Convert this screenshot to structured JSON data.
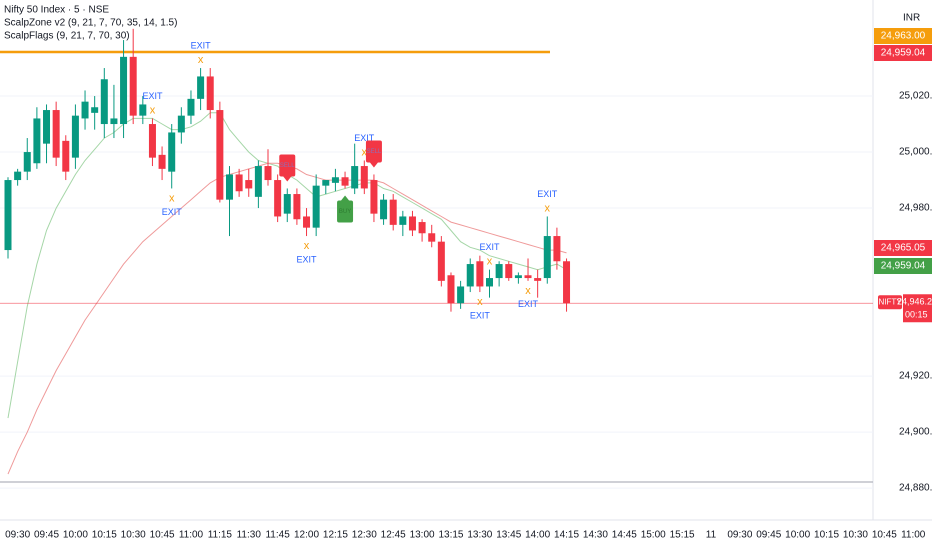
{
  "chart_data": {
    "type": "candlestick",
    "title": "Nifty 50 Index · 5 · NSE",
    "indicators": [
      "ScalpZone v2 (9, 21, 7, 70, 35, 14, 1.5)",
      "ScalpFlags (9, 21, 7, 70, 30)"
    ],
    "currency": "INR",
    "categories": [
      null,
      "09:30",
      null,
      null,
      "09:45",
      null,
      null,
      "10:00",
      null,
      null,
      "10:15",
      null,
      null,
      "10:30",
      null,
      null,
      "10:45",
      null,
      null,
      "11:00",
      null,
      null,
      "11:15",
      null,
      null,
      "11:30",
      null,
      null,
      "11:45",
      null,
      null,
      "12:00",
      null,
      null,
      "12:15",
      null,
      null,
      "12:30",
      null,
      null,
      "12:45",
      null,
      null,
      "13:00",
      null,
      null,
      "13:15",
      null,
      null,
      "13:30",
      null,
      null,
      "13:45",
      null,
      null,
      "14:00",
      null,
      null,
      "14:15"
    ],
    "future_time_labels": [
      "14:30",
      "14:45",
      "15:00",
      "15:15",
      "11",
      "09:30",
      "09:45",
      "10:00",
      "10:15",
      "10:30",
      "10:45",
      "11:00"
    ],
    "open": [
      24965,
      24990,
      24993,
      24996,
      25003,
      25015,
      25004,
      24998,
      25012,
      25014,
      25010,
      25010,
      25010,
      25034,
      25013,
      25010,
      24999,
      24993,
      25007,
      25013,
      25019,
      25027,
      25015,
      24983,
      24992,
      24990,
      24984,
      24995,
      24990,
      24978,
      24985,
      24977,
      24973,
      24988,
      24989,
      24991,
      24987,
      24995,
      24990,
      24976,
      24983,
      24974,
      24977,
      24975,
      24971,
      24968,
      24956,
      24946,
      24952,
      24961,
      24952,
      24955,
      24960,
      24955,
      24956,
      24955,
      24955,
      24970,
      24961
    ],
    "high": [
      24991,
      24994,
      25005,
      25016,
      25017,
      25018,
      25006,
      25017,
      25022,
      25020,
      25030,
      25024,
      25040,
      25044,
      25020,
      25012,
      25002,
      25010,
      25016,
      25022,
      25030,
      25030,
      25018,
      24995,
      24994,
      24994,
      24997,
      25001,
      24992,
      24987,
      24987,
      24980,
      24992,
      24990,
      24994,
      24993,
      25003,
      24997,
      24992,
      24985,
      24985,
      24979,
      24979,
      24976,
      24974,
      24970,
      24957,
      24954,
      24962,
      24963,
      24958,
      24961,
      24961,
      24957,
      24962,
      24958,
      24977,
      24973,
      24962
    ],
    "low": [
      24962,
      24988,
      24990,
      24994,
      24996,
      24995,
      24990,
      24994,
      25008,
      25008,
      25005,
      25005,
      25005,
      25010,
      25010,
      24995,
      24990,
      24987,
      25003,
      25010,
      25015,
      25012,
      24982,
      24970,
      24984,
      24984,
      24980,
      24988,
      24975,
      24975,
      24974,
      24970,
      24970,
      24985,
      24986,
      24987,
      24985,
      24985,
      24975,
      24974,
      24972,
      24970,
      24970,
      24968,
      24966,
      24952,
      24943,
      24944,
      24950,
      24950,
      24948,
      24952,
      24954,
      24953,
      24954,
      24948,
      24953,
      24958,
      24943
    ],
    "close": [
      24990,
      24993,
      25000,
      25012,
      25015,
      24998,
      24993,
      25013,
      25018,
      25016,
      25026,
      25012,
      25034,
      25013,
      25017,
      24998,
      24994,
      25007,
      25013,
      25019,
      25027,
      25015,
      24983,
      24992,
      24986,
      24987,
      24995,
      24990,
      24977,
      24985,
      24976,
      24973,
      24988,
      24990,
      24991,
      24988,
      24995,
      24987,
      24978,
      24983,
      24974,
      24977,
      24972,
      24971,
      24968,
      24954,
      24946,
      24952,
      24960,
      24952,
      24955,
      24960,
      24955,
      24956,
      24955,
      24954,
      24970,
      24961,
      24946
    ],
    "up_color": "#089981",
    "down_color": "#f23645",
    "lines": [
      {
        "color": "#a5d6a7",
        "values": [
          24905,
          24925,
          24945,
          24960,
          24972,
          24980,
          24986,
          24992,
          24997,
          25001,
          25005,
          25007,
          25010,
          25012,
          25012,
          25012,
          25010,
          25008,
          25008,
          25009,
          25011,
          25014,
          25014,
          25008,
          25004,
          25000,
          24997,
          24996,
          24995,
          24992,
          24990,
          24987,
          24984,
          24985,
          24986,
          24987,
          24988,
          24989,
          24989,
          24987,
          24986,
          24984,
          24982,
          24980,
          24978,
          24976,
          24972,
          24968,
          24966,
          24965,
          24963,
          24962,
          24961,
          24960,
          24959,
          24958,
          24959,
          24960,
          24958
        ]
      },
      {
        "color": "#ef9a9a",
        "values": [
          24885,
          24893,
          24900,
          24908,
          24915,
          24922,
          24928,
          24934,
          24940,
          24945,
          24950,
          24955,
          24960,
          24964,
          24968,
          24971,
          24974,
          24977,
          24980,
          24983,
          24986,
          24989,
          24991,
          24992,
          24993,
          24994,
          24995,
          24996,
          24996,
          24995,
          24994,
          24992,
          24991,
          24990,
          24990,
          24990,
          24990,
          24990,
          24990,
          24989,
          24987,
          24985,
          24983,
          24981,
          24979,
          24977,
          24975,
          24974,
          24973,
          24972,
          24971,
          24970,
          24969,
          24968,
          24967,
          24966,
          24965,
          24965,
          24964
        ]
      }
    ],
    "annotations": [
      {
        "index": 15,
        "side": "above",
        "lines": [
          "EXIT",
          "x"
        ]
      },
      {
        "index": 17,
        "side": "below",
        "lines": [
          "x",
          "EXIT"
        ]
      },
      {
        "index": 20,
        "side": "above",
        "lines": [
          "EXIT",
          "x"
        ]
      },
      {
        "index": 31,
        "side": "below",
        "lines": [
          "x",
          "EXIT"
        ]
      },
      {
        "index": 37,
        "side": "above",
        "lines": [
          "EXIT",
          "x"
        ]
      },
      {
        "index": 50,
        "side": "above",
        "lines": [
          "EXIT",
          "x"
        ]
      },
      {
        "index": 49,
        "side": "below",
        "lines": [
          "x",
          "EXIT"
        ]
      },
      {
        "index": 54,
        "side": "below",
        "lines": [
          "x",
          "EXIT"
        ]
      },
      {
        "index": 56,
        "side": "above",
        "lines": [
          "EXIT",
          "x"
        ]
      }
    ],
    "tags": [
      {
        "index": 29,
        "side": "above",
        "label": "SELL",
        "color": "#f23645"
      },
      {
        "index": 38,
        "side": "above",
        "label": "SELL",
        "color": "#f23645"
      },
      {
        "index": 35,
        "side": "below",
        "label": "BUY",
        "color": "#43a047"
      }
    ],
    "price_badges": [
      {
        "label": "24,963.00",
        "color": "#f59d0c"
      },
      {
        "label": "24,959.04",
        "color": "#f23645"
      },
      {
        "label": "24,965.05",
        "color": "#f23645"
      },
      {
        "label": "24,959.04",
        "color": "#43a047"
      }
    ],
    "last_price": {
      "symbol": "NIFTY",
      "label": "24,946.20",
      "countdown": "00:15",
      "color": "#f23645"
    },
    "ylim": [
      24868.6,
      25054.3
    ],
    "yticks": [
      {
        "value": 24880,
        "label": "24,880.00"
      },
      {
        "value": 24900,
        "label": "24,900.00"
      },
      {
        "value": 24920,
        "label": "24,920.00"
      },
      {
        "value": 24980,
        "label": "24,980.00"
      },
      {
        "value": 25000,
        "label": "25,000.00"
      },
      {
        "value": 25020,
        "label": "25,020.00"
      }
    ],
    "grid": true
  }
}
